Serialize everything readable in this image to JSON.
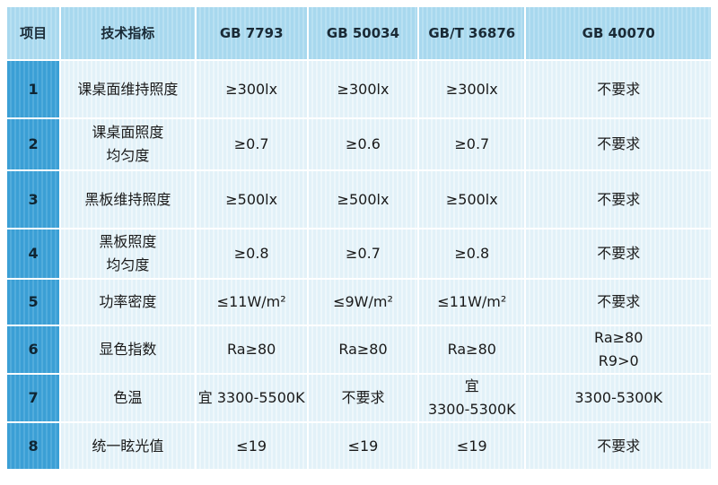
{
  "table": {
    "columns": [
      "项目",
      "技术指标",
      "GB 7793",
      "GB 50034",
      "GB/T 36876",
      "GB 40070"
    ],
    "rows": [
      [
        "1",
        "课桌面维持照度",
        "≥300lx",
        "≥300lx",
        "≥300lx",
        "不要求"
      ],
      [
        "2",
        "课桌面照度\n均匀度",
        "≥0.7",
        "≥0.6",
        "≥0.7",
        "不要求"
      ],
      [
        "3",
        "黑板维持照度",
        "≥500lx",
        "≥500lx",
        "≥500lx",
        "不要求"
      ],
      [
        "4",
        "黑板照度\n均匀度",
        "≥0.8",
        "≥0.7",
        "≥0.8",
        "不要求"
      ],
      [
        "5",
        "功率密度",
        "≤11W/m²",
        "≤9W/m²",
        "≤11W/m²",
        "不要求"
      ],
      [
        "6",
        "显色指数",
        "Ra≥80",
        "Ra≥80",
        "Ra≥80",
        "Ra≥80\nR9>0"
      ],
      [
        "7",
        "色温",
        "宜 3300-5500K",
        "不要求",
        "宜\n3300-5300K",
        "3300-5300K"
      ],
      [
        "8",
        "统一眩光值",
        "≤19",
        "≤19",
        "≤19",
        "不要求"
      ]
    ]
  }
}
